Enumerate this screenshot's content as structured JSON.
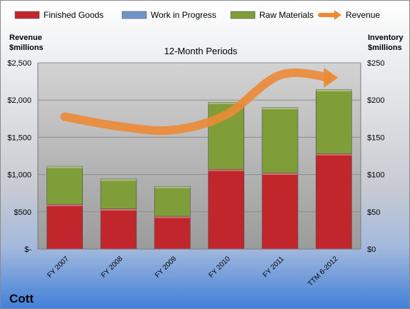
{
  "chart_data": {
    "type": "bar",
    "subtitle": "12-Month Periods",
    "company": "Cott",
    "left_axis_title": [
      "Revenue",
      "$millions"
    ],
    "right_axis_title": [
      "Inventory",
      "$millions"
    ],
    "categories": [
      "FY 2007",
      "FY 2008",
      "FY 2009",
      "FY 2010",
      "FY 2011",
      "TTM 6-2012"
    ],
    "left_ticks": [
      "$-",
      "$500",
      "$1,000",
      "$1,500",
      "$2,000",
      "$2,500"
    ],
    "right_ticks": [
      "$0",
      "$50",
      "$100",
      "$150",
      "$200",
      "$250"
    ],
    "ylim_left": [
      0,
      2500
    ],
    "ylim_right": [
      0,
      250
    ],
    "series": [
      {
        "name": "Finished Goods",
        "type": "stacked-bar",
        "axis": "right",
        "color": "#c0262c",
        "values": [
          60,
          54,
          44,
          107,
          102,
          128
        ]
      },
      {
        "name": "Work in Progress",
        "type": "stacked-bar",
        "axis": "right",
        "color": "#6e95c9",
        "values": [
          0,
          0,
          0,
          0,
          0,
          0
        ]
      },
      {
        "name": "Raw Materials",
        "type": "stacked-bar",
        "axis": "right",
        "color": "#7f9e3a",
        "values": [
          51,
          40,
          40,
          90,
          88,
          86
        ]
      },
      {
        "name": "Revenue",
        "type": "arrow-line",
        "axis": "left",
        "color": "#ec8a36",
        "values": [
          1776,
          1648,
          1597,
          1803,
          2335,
          2300
        ]
      }
    ],
    "grid": true,
    "legend_position": "top"
  }
}
